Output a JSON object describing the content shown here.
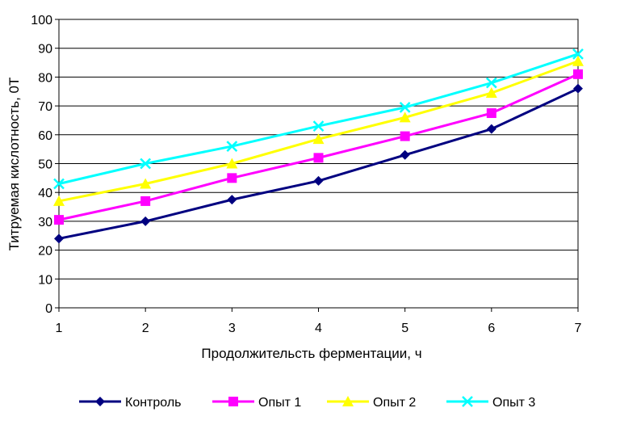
{
  "chart_data": {
    "type": "line",
    "title": "",
    "xlabel": "Продолжительсть ферментации,  ч",
    "ylabel": "Титруемая кислотность, 0Т",
    "x": [
      1,
      2,
      3,
      4,
      5,
      6,
      7
    ],
    "xlim": [
      1,
      7
    ],
    "ylim": [
      0,
      100
    ],
    "yticks": [
      0,
      10,
      20,
      30,
      40,
      50,
      60,
      70,
      80,
      90,
      100
    ],
    "grid": "horizontal",
    "legend_position": "bottom",
    "series": [
      {
        "name": "Контроль",
        "color": "#000080",
        "marker": "diamond",
        "values": [
          24,
          30,
          37.5,
          44,
          53,
          62,
          76
        ]
      },
      {
        "name": "Опыт 1",
        "color": "#ff00ff",
        "marker": "square",
        "values": [
          30.5,
          37,
          45,
          52,
          59.5,
          67.5,
          81
        ]
      },
      {
        "name": "Опыт 2",
        "color": "#ffff00",
        "marker": "triangle",
        "values": [
          37,
          43,
          50,
          58.5,
          66,
          74.5,
          85.5
        ]
      },
      {
        "name": "Опыт 3",
        "color": "#00ffff",
        "marker": "x",
        "values": [
          43,
          50,
          56,
          63,
          69.5,
          78,
          88
        ]
      }
    ]
  }
}
